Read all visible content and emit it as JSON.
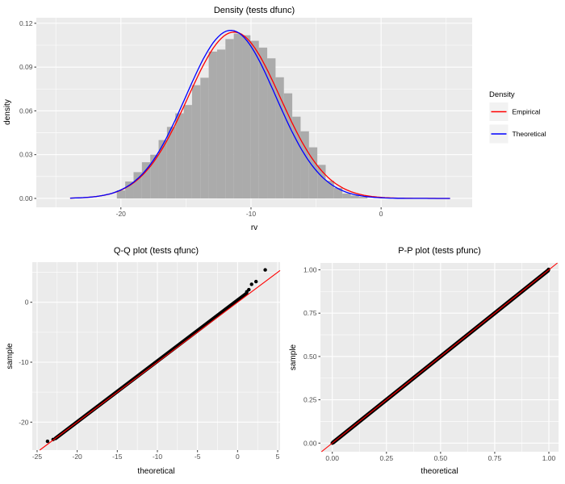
{
  "figure": {
    "background": "#FFFFFF"
  },
  "theme": {
    "panel_bg": "#EBEBEB",
    "grid": "#FFFFFF",
    "axis_text": "#4D4D4D",
    "title_text": "#000000",
    "tick": "#333333",
    "point": "#000000",
    "legend_key_bg": "#F2F2F2",
    "histogram_fill": "#ABABAB",
    "empirical_color": "#FF0000",
    "theoretical_color": "#0000FF"
  },
  "chart_data": [
    {
      "id": "density",
      "type": "histogram+line",
      "title": "Density (tests dfunc)",
      "xlabel": "rv",
      "ylabel": "density",
      "xlim": [
        -26.5,
        7.0
      ],
      "ylim": [
        -0.0061,
        0.1238
      ],
      "x_ticks": [
        -20,
        -10,
        0
      ],
      "x_tick_labels": [
        "-20",
        "-10",
        "0"
      ],
      "x_minor": [
        -25,
        -15,
        -5,
        5
      ],
      "y_ticks": [
        0,
        0.03,
        0.06,
        0.09,
        0.12
      ],
      "y_tick_labels": [
        "0.00",
        "0.03",
        "0.06",
        "0.09",
        "0.12"
      ],
      "y_minor": [
        0.015,
        0.045,
        0.075,
        0.105
      ],
      "hist": {
        "x0": -20.31,
        "bin_width": 0.642,
        "heights": [
          0.0055,
          0.0116,
          0.018,
          0.0248,
          0.03,
          0.04,
          0.049,
          0.0583,
          0.064,
          0.0776,
          0.0827,
          0.1006,
          0.102,
          0.1092,
          0.113,
          0.1118,
          0.108,
          0.1033,
          0.096,
          0.083,
          0.072,
          0.056,
          0.046,
          0.035,
          0.023,
          0.0121,
          0.0072,
          0.0033,
          0.002,
          0.001
        ]
      },
      "curves": [
        {
          "name": "Empirical",
          "color": "#FF0000",
          "mean": -11.3,
          "sd": 3.55,
          "peak": 0.114,
          "range": [
            -23.9,
            5.4
          ]
        },
        {
          "name": "Theoretical",
          "color": "#0000FF",
          "mean": -11.55,
          "sd": 3.46,
          "peak": 0.1152,
          "range": [
            -23.9,
            5.4
          ]
        }
      ],
      "legend": {
        "title": "Density",
        "entries": [
          {
            "label": "Empirical",
            "color": "#FF0000"
          },
          {
            "label": "Theoretical",
            "color": "#0000FF"
          }
        ]
      }
    },
    {
      "id": "qq",
      "type": "scatter",
      "title": "Q-Q plot (tests qfunc)",
      "xlabel": "theoretical",
      "ylabel": "sample",
      "xlim": [
        -25.6,
        5.3
      ],
      "ylim": [
        -24.67,
        6.69
      ],
      "x_ticks": [
        -25,
        -20,
        -15,
        -10,
        -5,
        0,
        5
      ],
      "x_tick_labels": [
        "-25",
        "-20",
        "-15",
        "-10",
        "-5",
        "0",
        "5"
      ],
      "x_minor": [
        -22.5,
        -17.5,
        -12.5,
        -7.5,
        -2.5,
        2.5
      ],
      "y_ticks": [
        0,
        -10,
        -20
      ],
      "y_tick_labels": [
        "0",
        "-10",
        "-20"
      ],
      "y_minor": [
        5,
        -5,
        -15
      ],
      "band": {
        "from": [
          -22.7,
          -22.7
        ],
        "to": [
          1.1,
          1.45
        ],
        "width": 4.6
      },
      "points": [
        [
          -23.7,
          -23.2
        ],
        [
          -23.0,
          -22.9
        ],
        [
          1.15,
          1.75
        ],
        [
          1.4,
          2.1
        ],
        [
          1.75,
          3.0
        ],
        [
          2.3,
          3.45
        ],
        [
          3.45,
          5.4
        ]
      ],
      "line_color": "#FF0000"
    },
    {
      "id": "pp",
      "type": "scatter",
      "title": "P-P plot (tests pfunc)",
      "xlabel": "theoretical",
      "ylabel": "sample",
      "xlim": [
        -0.0548,
        1.0447
      ],
      "ylim": [
        -0.0498,
        1.0396
      ],
      "x_ticks": [
        0,
        0.25,
        0.5,
        0.75,
        1
      ],
      "x_tick_labels": [
        "0.00",
        "0.25",
        "0.50",
        "0.75",
        "1.00"
      ],
      "x_minor": [
        0.125,
        0.375,
        0.625,
        0.875
      ],
      "y_ticks": [
        0,
        0.25,
        0.5,
        0.75,
        1
      ],
      "y_tick_labels": [
        "0.00",
        "0.25",
        "0.50",
        "0.75",
        "1.00"
      ],
      "y_minor": [
        0.125,
        0.375,
        0.625,
        0.875
      ],
      "band": {
        "from": [
          0.004,
          0.004
        ],
        "to": [
          0.996,
          0.996
        ],
        "width": 5
      },
      "points": [
        [
          0.0,
          0.0
        ],
        [
          0.999,
          1.003
        ]
      ],
      "line_color": "#FF0000"
    }
  ]
}
